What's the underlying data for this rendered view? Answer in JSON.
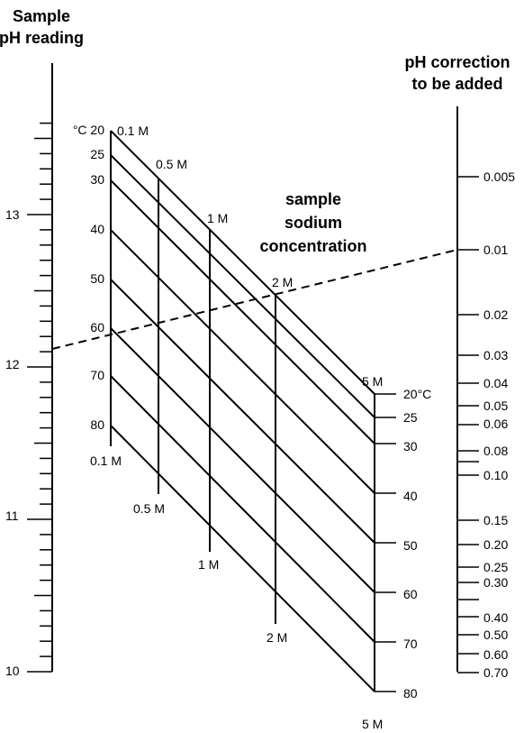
{
  "left_scale": {
    "title": [
      "Sample",
      "pH reading"
    ],
    "labels": [
      "13",
      "12",
      "11",
      "10"
    ]
  },
  "right_scale": {
    "title": [
      "pH correction",
      "to be added"
    ],
    "labels": [
      "0.005",
      "0.01",
      "0.02",
      "0.03",
      "0.04",
      "0.05",
      "0.06",
      "0.08",
      "0.10",
      "0.15",
      "0.20",
      "0.25",
      "0.30",
      "0.40",
      "0.50",
      "0.60",
      "0.70"
    ]
  },
  "grid": {
    "title": [
      "sample",
      "sodium",
      "concentration"
    ],
    "temperature_labels_left": [
      "°C 20",
      "25",
      "30",
      "40",
      "50",
      "60",
      "70",
      "80"
    ],
    "temperature_labels_right": [
      "20°C",
      "25",
      "30",
      "40",
      "50",
      "60",
      "70",
      "80"
    ],
    "concentration_labels_top": [
      "0.1 M",
      "0.5 M",
      "1 M",
      "2 M",
      "5 M"
    ],
    "concentration_labels_bottom": [
      "0.1 M",
      "0.5 M",
      "1 M",
      "2 M",
      "5 M"
    ]
  }
}
